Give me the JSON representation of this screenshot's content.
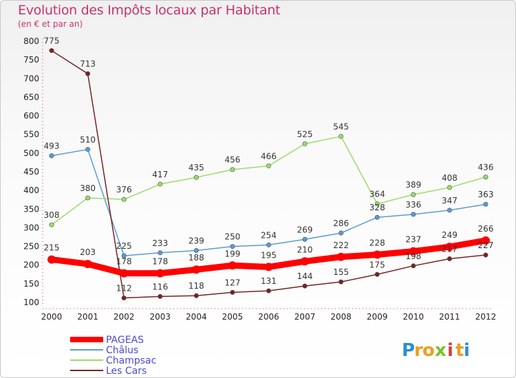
{
  "title": "Evolution des Impôts locaux par Habitant",
  "subtitle": "(en € et par an)",
  "logo": {
    "text": "Proxiti",
    "letters": [
      "P",
      "r",
      "o",
      "x",
      "i",
      "t",
      "i"
    ],
    "colors": [
      "#2a8fd0",
      "#e8a020",
      "#e8a020",
      "#7bbf2a",
      "#d04040",
      "#e8a020",
      "#2a8fd0"
    ]
  },
  "chart_data": {
    "type": "line",
    "title": "Evolution des Impôts locaux par Habitant",
    "subtitle": "(en € et par an)",
    "x": [
      "2000",
      "2001",
      "2002",
      "2003",
      "2004",
      "2005",
      "2006",
      "2007",
      "2008",
      "2009",
      "2010",
      "2011",
      "2012"
    ],
    "ylim": [
      100,
      800
    ],
    "yticks": [
      100,
      150,
      200,
      250,
      300,
      350,
      400,
      450,
      500,
      550,
      600,
      650,
      700,
      750,
      800
    ],
    "legend_position": "bottom-left",
    "series": [
      {
        "name": "PAGEAS",
        "color": "#ff0000",
        "values": [
          215,
          203,
          178,
          178,
          188,
          199,
          195,
          210,
          222,
          228,
          237,
          249,
          266
        ]
      },
      {
        "name": "Châlus",
        "color": "#5a9bd5",
        "values": [
          493,
          510,
          225,
          233,
          239,
          250,
          254,
          269,
          286,
          328,
          336,
          347,
          363
        ]
      },
      {
        "name": "Champsac",
        "color": "#99dd66",
        "values": [
          308,
          380,
          376,
          417,
          435,
          456,
          466,
          525,
          545,
          364,
          389,
          408,
          436
        ]
      },
      {
        "name": "Les Cars",
        "color": "#772222",
        "values": [
          775,
          713,
          112,
          116,
          118,
          127,
          131,
          144,
          155,
          175,
          198,
          217,
          227
        ]
      }
    ]
  }
}
